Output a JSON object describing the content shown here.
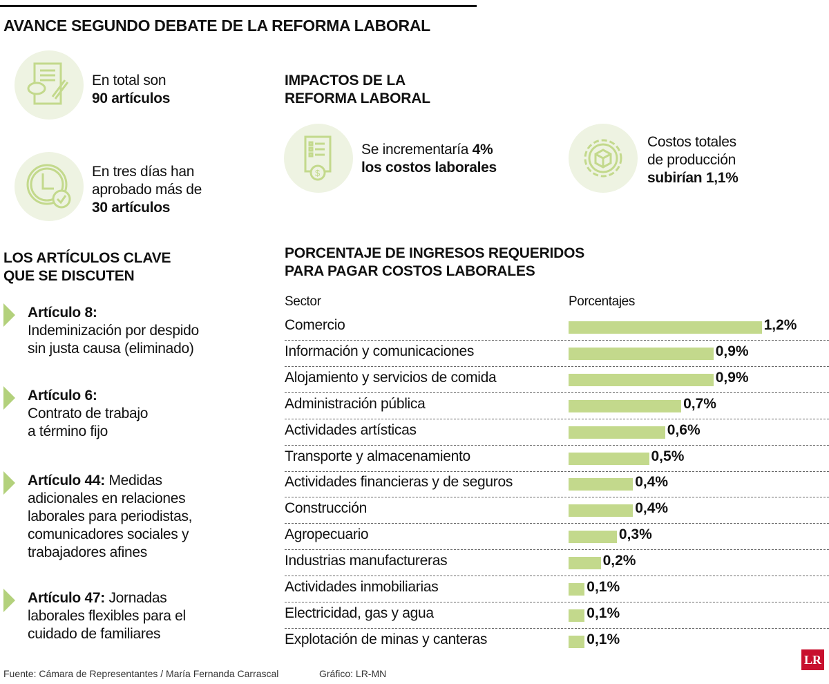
{
  "title": "AVANCE SEGUNDO DEBATE DE LA REFORMA LABORAL",
  "stats": [
    {
      "icon": "document-pen-icon",
      "lines": [
        "En total son"
      ],
      "bold": "90 artículos"
    },
    {
      "icon": "clock-check-icon",
      "lines": [
        "En tres días han",
        "aprobado más de"
      ],
      "bold": "30 artículos"
    }
  ],
  "impacts": {
    "heading": [
      "IMPACTOS DE LA",
      "REFORMA LABORAL"
    ],
    "items": [
      {
        "icon": "invoice-dollar-icon",
        "text": "Se incrementaría ",
        "bold1": "4%",
        "bold2": "los costos laborales"
      },
      {
        "icon": "gear-box-icon",
        "line1": "Costos totales",
        "line2": "de producción",
        "bold": "subirían 1,1%"
      }
    ]
  },
  "articles": {
    "heading": [
      "LOS ARTÍCULOS CLAVE",
      "QUE SE DISCUTEN"
    ],
    "items": [
      {
        "title": "Artículo 8:",
        "inline": "",
        "lines": [
          "Indeminización por despido",
          "sin justa causa (eliminado)"
        ]
      },
      {
        "title": "Artículo 6:",
        "inline": "",
        "lines": [
          "Contrato de trabajo",
          "a término fijo"
        ]
      },
      {
        "title": "Artículo 44:",
        "inline": " Medidas",
        "lines": [
          "adicionales en relaciones",
          "laborales para periodistas,",
          "comunicadores sociales y",
          "trabajadores afines"
        ]
      },
      {
        "title": "Artículo 47:",
        "inline": " Jornadas",
        "lines": [
          "laborales flexibles para el",
          "cuidado de familiares"
        ]
      }
    ]
  },
  "chart_data": {
    "type": "bar",
    "orientation": "horizontal",
    "title": "PORCENTAJE DE INGRESOS REQUERIDOS PARA PAGAR COSTOS LABORALES",
    "title_lines": [
      "PORCENTAJE DE INGRESOS REQUERIDOS",
      "PARA PAGAR COSTOS LABORALES"
    ],
    "category_header": "Sector",
    "value_header": "Porcentajes",
    "categories": [
      "Comercio",
      "Información y comunicaciones",
      "Alojamiento y servicios de comida",
      "Administración pública",
      "Actividades artísticas",
      "Transporte y almacenamiento",
      "Actividades financieras y de seguros",
      "Construcción",
      "Agropecuario",
      "Industrias manufactureras",
      "Actividades inmobiliarias",
      "Electricidad, gas y agua",
      "Explotación de minas y canteras"
    ],
    "values": [
      1.2,
      0.9,
      0.9,
      0.7,
      0.6,
      0.5,
      0.4,
      0.4,
      0.3,
      0.2,
      0.1,
      0.1,
      0.1
    ],
    "labels": [
      "1,2%",
      "0,9%",
      "0,9%",
      "0,7%",
      "0,6%",
      "0,5%",
      "0,4%",
      "0,4%",
      "0,3%",
      "0,2%",
      "0,1%",
      "0,1%",
      "0,1%"
    ],
    "unit": "%",
    "bar_color": "#c3d98c",
    "grid": false
  },
  "footer": {
    "source": "Fuente: Cámara de Representantes / María Fernanda Carrascal",
    "graphic": "Gráfico: LR-MN",
    "logo": "LR",
    "logo_color": "#c8102e"
  },
  "colors": {
    "accent": "#b3d17c",
    "icon_bg": "#eef3e2",
    "icon_stroke": "#c3d98c"
  }
}
